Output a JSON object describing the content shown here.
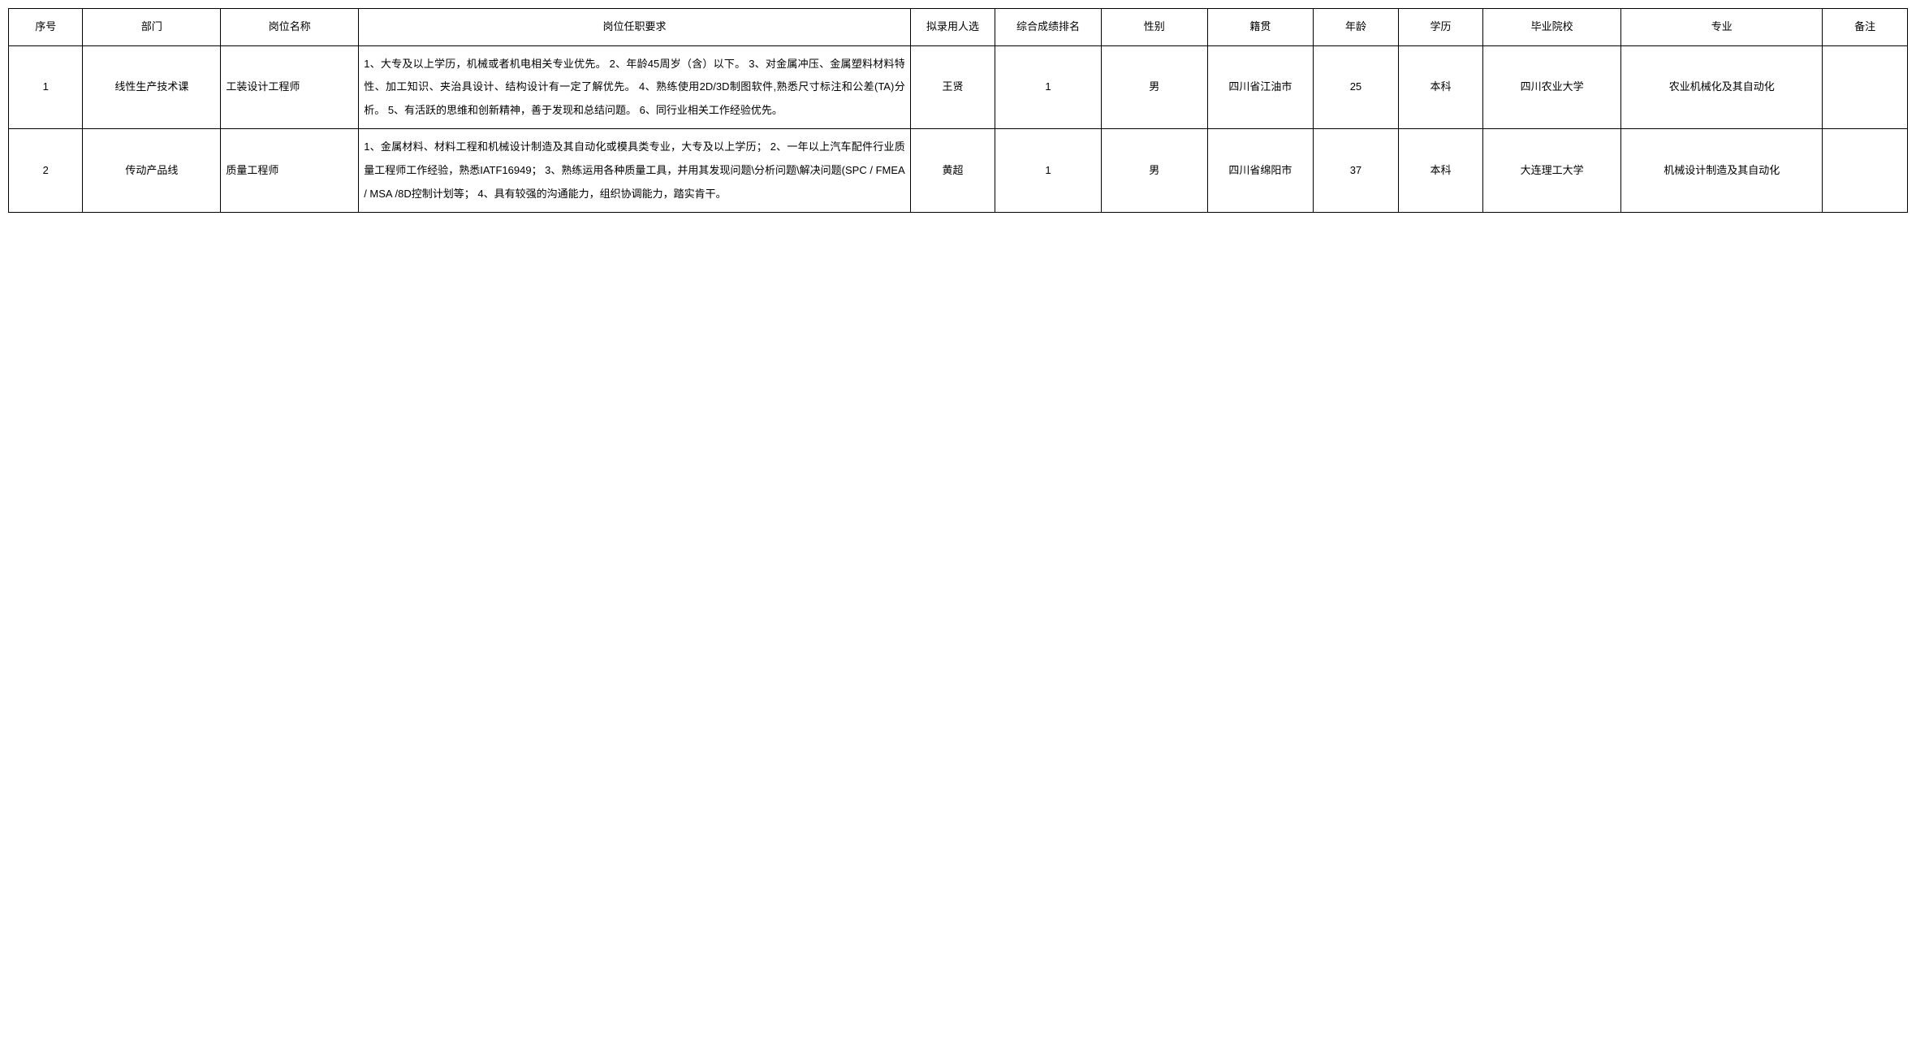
{
  "table": {
    "columns": [
      {
        "key": "seq",
        "label": "序号",
        "class": "col-seq"
      },
      {
        "key": "dept",
        "label": "部门",
        "class": "col-dept"
      },
      {
        "key": "position",
        "label": "岗位名称",
        "class": "col-pos"
      },
      {
        "key": "requirements",
        "label": "岗位任职要求",
        "class": "col-req"
      },
      {
        "key": "candidate",
        "label": "拟录用人选",
        "class": "col-candidate"
      },
      {
        "key": "rank",
        "label": "综合成绩排名",
        "class": "col-rank"
      },
      {
        "key": "gender",
        "label": "性别",
        "class": "col-gender"
      },
      {
        "key": "origin",
        "label": "籍贯",
        "class": "col-origin"
      },
      {
        "key": "age",
        "label": "年龄",
        "class": "col-age"
      },
      {
        "key": "education",
        "label": "学历",
        "class": "col-edu"
      },
      {
        "key": "school",
        "label": "毕业院校",
        "class": "col-school"
      },
      {
        "key": "major",
        "label": "专业",
        "class": "col-major"
      },
      {
        "key": "remark",
        "label": "备注",
        "class": "col-remark"
      }
    ],
    "rows": [
      {
        "seq": "1",
        "dept": "线性生产技术课",
        "position": "工装设计工程师",
        "requirements": "1、大专及以上学历，机械或者机电相关专业优先。 2、年龄45周岁（含）以下。 3、对金属冲压、金属塑料材料特性、加工知识、夹治具设计、结构设计有一定了解优先。 4、熟练使用2D/3D制图软件,熟悉尺寸标注和公差(TA)分析。 5、有活跃的思维和创新精神，善于发现和总结问题。 6、同行业相关工作经验优先。",
        "candidate": "王贤",
        "rank": "1",
        "gender": "男",
        "origin": "四川省江油市",
        "age": "25",
        "education": "本科",
        "school": "四川农业大学",
        "major": "农业机械化及其自动化",
        "remark": ""
      },
      {
        "seq": "2",
        "dept": "传动产品线",
        "position": "质量工程师",
        "requirements": "1、金属材料、材料工程和机械设计制造及其自动化或模具类专业，大专及以上学历； 2、一年以上汽车配件行业质量工程师工作经验，熟悉IATF16949； 3、熟练运用各种质量工具，并用其发现问题\\分析问题\\解决问题(SPC / FMEA / MSA /8D控制计划等； 4、具有较强的沟通能力，组织协调能力，踏实肯干。",
        "candidate": "黄超",
        "rank": "1",
        "gender": "男",
        "origin": "四川省绵阳市",
        "age": "37",
        "education": "本科",
        "school": "大连理工大学",
        "major": "机械设计制造及其自动化",
        "remark": ""
      }
    ],
    "styling": {
      "border_color": "#000000",
      "background_color": "#ffffff",
      "text_color": "#000000",
      "font_size": 13,
      "line_height": 2.2
    }
  }
}
